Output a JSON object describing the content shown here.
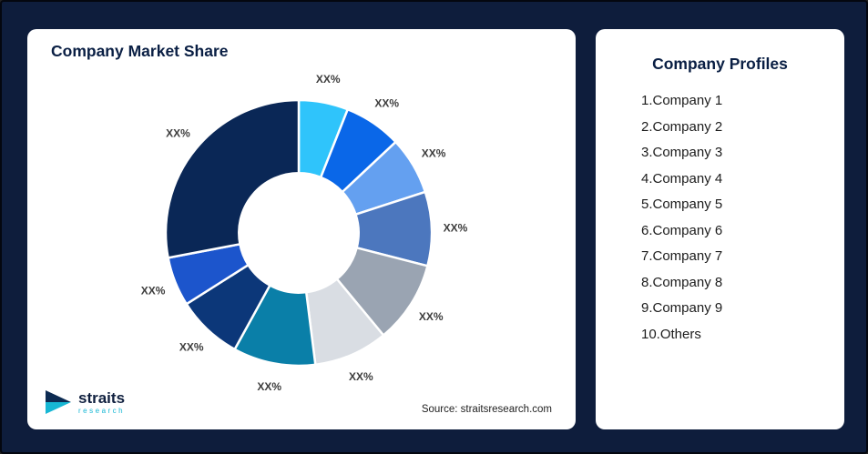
{
  "page": {
    "background": "#0E1D3C",
    "card_background": "#FFFFFF"
  },
  "market_share_card": {
    "title": "Company Market Share",
    "source": "Source: straitsresearch.com",
    "logo": {
      "brand": "straits",
      "sub": "research"
    }
  },
  "profiles_card": {
    "title": "Company Profiles",
    "items": [
      "1.Company 1",
      "2.Company 2",
      "3.Company 3",
      "4.Company 4",
      "5.Company 5",
      "6.Company 6",
      "7.Company 7",
      "8.Company 8",
      "9.Company 9",
      "10.Others"
    ]
  },
  "chart_data": {
    "type": "pie",
    "subtype": "donut",
    "title": "Company Market Share",
    "legend_position": "none",
    "start_angle_deg": 0,
    "inner_radius_ratio": 0.45,
    "segments": [
      {
        "label": "XX%",
        "value": 6,
        "color": "#2FC4FB"
      },
      {
        "label": "XX%",
        "value": 7,
        "color": "#0A67E8"
      },
      {
        "label": "XX%",
        "value": 7,
        "color": "#64A0F0"
      },
      {
        "label": "XX%",
        "value": 9,
        "color": "#4C77BE"
      },
      {
        "label": "XX%",
        "value": 10,
        "color": "#9AA4B2"
      },
      {
        "label": "XX%",
        "value": 9,
        "color": "#D9DDE3"
      },
      {
        "label": "XX%",
        "value": 10,
        "color": "#0A7FA8"
      },
      {
        "label": "XX%",
        "value": 8,
        "color": "#0C3779"
      },
      {
        "label": "XX%",
        "value": 6,
        "color": "#1C55CC"
      },
      {
        "label": "XX%",
        "value": 28,
        "color": "#0A2756"
      }
    ]
  }
}
